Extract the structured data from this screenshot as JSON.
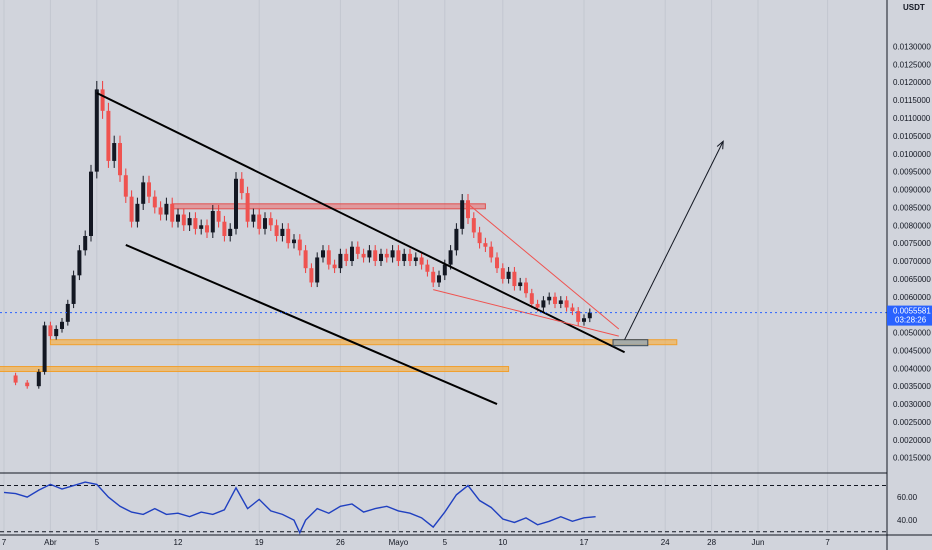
{
  "chart_data": {
    "type": "candlestick",
    "unit_label": "USDT",
    "y_range": [
      0.0011,
      0.0143
    ],
    "y_ticks": [
      0.0015,
      0.002,
      0.0025,
      0.003,
      0.0035,
      0.004,
      0.0045,
      0.005,
      0.0055,
      0.006,
      0.0065,
      0.007,
      0.0075,
      0.008,
      0.0085,
      0.009,
      0.0095,
      0.01,
      0.0105,
      0.011,
      0.0115,
      0.012,
      0.0125,
      0.013
    ],
    "y_tick_labels": [
      "0.0015000",
      "0.0020000",
      "0.0025000",
      "0.0030000",
      "0.0035000",
      "0.0040000",
      "0.0045000",
      "0.0050000",
      "0.0055000",
      "0.0060000",
      "0.0065000",
      "0.0070000",
      "0.0075000",
      "0.0080000",
      "0.0085000",
      "0.0090000",
      "0.0095000",
      "0.0100000",
      "0.0105000",
      "0.0110000",
      "0.0115000",
      "0.0120000",
      "0.0125000",
      "0.0130000"
    ],
    "x_ticks": [
      {
        "label": "7",
        "day": 0
      },
      {
        "label": "Abr",
        "day": 4
      },
      {
        "label": "5",
        "day": 8
      },
      {
        "label": "12",
        "day": 15
      },
      {
        "label": "19",
        "day": 22
      },
      {
        "label": "26",
        "day": 29
      },
      {
        "label": "Mayo",
        "day": 34
      },
      {
        "label": "5",
        "day": 38
      },
      {
        "label": "10",
        "day": 43
      },
      {
        "label": "17",
        "day": 50
      },
      {
        "label": "24",
        "day": 57
      },
      {
        "label": "28",
        "day": 61
      },
      {
        "label": "Jun",
        "day": 65
      },
      {
        "label": "7",
        "day": 71
      }
    ],
    "current_price": {
      "value": 0.0055581,
      "label": "0.0055581",
      "countdown": "03:28:26"
    },
    "series_close": [
      [
        0,
        0.0038
      ],
      [
        1,
        0.0036
      ],
      [
        2,
        0.0035
      ],
      [
        3,
        0.0039
      ],
      [
        3.5,
        0.0052
      ],
      [
        4,
        0.0049
      ],
      [
        4.5,
        0.0051
      ],
      [
        5,
        0.0053
      ],
      [
        5.5,
        0.0058
      ],
      [
        6,
        0.0066
      ],
      [
        6.5,
        0.0073
      ],
      [
        7,
        0.0077
      ],
      [
        7.5,
        0.0095
      ],
      [
        8,
        0.0118
      ],
      [
        8.5,
        0.0112
      ],
      [
        9,
        0.0098
      ],
      [
        9.5,
        0.0103
      ],
      [
        10,
        0.0094
      ],
      [
        10.5,
        0.0088
      ],
      [
        11,
        0.0081
      ],
      [
        11.5,
        0.0086
      ],
      [
        12,
        0.0092
      ],
      [
        12.5,
        0.0088
      ],
      [
        13,
        0.0085
      ],
      [
        13.5,
        0.0083
      ],
      [
        14,
        0.0086
      ],
      [
        14.5,
        0.0081
      ],
      [
        15,
        0.0083
      ],
      [
        15.5,
        0.008
      ],
      [
        16,
        0.0082
      ],
      [
        16.5,
        0.0079
      ],
      [
        17,
        0.008
      ],
      [
        17.5,
        0.0078
      ],
      [
        18,
        0.0084
      ],
      [
        18.5,
        0.0081
      ],
      [
        19,
        0.0077
      ],
      [
        19.5,
        0.0079
      ],
      [
        20,
        0.0093
      ],
      [
        20.5,
        0.0089
      ],
      [
        21,
        0.0081
      ],
      [
        21.5,
        0.0083
      ],
      [
        22,
        0.0079
      ],
      [
        22.5,
        0.0082
      ],
      [
        23,
        0.008
      ],
      [
        23.5,
        0.0077
      ],
      [
        24,
        0.0079
      ],
      [
        24.5,
        0.0075
      ],
      [
        25,
        0.0076
      ],
      [
        25.5,
        0.0073
      ],
      [
        26,
        0.0068
      ],
      [
        26.5,
        0.0064
      ],
      [
        27,
        0.0071
      ],
      [
        27.5,
        0.0073
      ],
      [
        28,
        0.0069
      ],
      [
        28.5,
        0.0068
      ],
      [
        29,
        0.0072
      ],
      [
        29.5,
        0.007
      ],
      [
        30,
        0.0074
      ],
      [
        30.5,
        0.0072
      ],
      [
        31,
        0.0071
      ],
      [
        31.5,
        0.0073
      ],
      [
        32,
        0.007
      ],
      [
        32.5,
        0.0072
      ],
      [
        33,
        0.0071
      ],
      [
        33.5,
        0.0073
      ],
      [
        34,
        0.007
      ],
      [
        34.5,
        0.0072
      ],
      [
        35,
        0.007
      ],
      [
        35.5,
        0.0071
      ],
      [
        36,
        0.0069
      ],
      [
        36.5,
        0.0067
      ],
      [
        37,
        0.0064
      ],
      [
        37.5,
        0.0066
      ],
      [
        38,
        0.0069
      ],
      [
        38.5,
        0.0073
      ],
      [
        39,
        0.0079
      ],
      [
        39.5,
        0.0087
      ],
      [
        40,
        0.0082
      ],
      [
        40.5,
        0.0078
      ],
      [
        41,
        0.0075
      ],
      [
        41.5,
        0.0074
      ],
      [
        42,
        0.0071
      ],
      [
        42.5,
        0.0068
      ],
      [
        43,
        0.0065
      ],
      [
        43.5,
        0.0067
      ],
      [
        44,
        0.0063
      ],
      [
        44.5,
        0.0064
      ],
      [
        45,
        0.0061
      ],
      [
        45.5,
        0.0058
      ],
      [
        46,
        0.0057
      ],
      [
        46.5,
        0.0059
      ],
      [
        47,
        0.006
      ],
      [
        47.5,
        0.0058
      ],
      [
        48,
        0.0059
      ],
      [
        48.5,
        0.0057
      ],
      [
        49,
        0.0056
      ],
      [
        49.5,
        0.0053
      ],
      [
        50,
        0.0054
      ],
      [
        50.5,
        0.00556
      ]
    ],
    "resistance_zones": [
      {
        "y_low": 0.0085,
        "y_high": 0.0086,
        "x_start": 14.5,
        "x_end": 41.5
      },
      {
        "y_low": 0.0047,
        "y_high": 0.0048,
        "x_start": 4,
        "x_end": 58
      }
    ],
    "support_zones": [
      {
        "y_low": 0.00395,
        "y_high": 0.00405,
        "x_start": -0.5,
        "x_end": 43.5
      }
    ],
    "trendlines": [
      {
        "from": [
          8,
          0.0117
        ],
        "to": [
          53.5,
          0.00445
        ],
        "style": "thick"
      },
      {
        "from": [
          10.5,
          0.00745
        ],
        "to": [
          42.5,
          0.003
        ],
        "style": "thick"
      },
      {
        "from": [
          40,
          0.0086
        ],
        "to": [
          53,
          0.0051
        ],
        "style": "thin-red"
      },
      {
        "from": [
          37,
          0.0062
        ],
        "to": [
          53,
          0.0049
        ],
        "style": "thin-red"
      }
    ],
    "projection": {
      "from": [
        53.5,
        0.0048
      ],
      "to": [
        62,
        0.01035
      ]
    },
    "target_box": {
      "y_low": 0.0047,
      "y_high": 0.0048,
      "x_start": 52.5,
      "x_end": 55.5
    },
    "rsi": {
      "y_range": [
        28,
        80
      ],
      "levels": [
        70,
        30
      ],
      "tick_labels": [
        "60.00",
        "40.00"
      ],
      "tick_values": [
        60,
        40
      ],
      "series": [
        [
          0,
          64
        ],
        [
          1,
          63
        ],
        [
          2,
          60
        ],
        [
          3,
          66
        ],
        [
          4,
          71
        ],
        [
          5,
          67
        ],
        [
          6,
          70
        ],
        [
          7,
          73
        ],
        [
          8,
          71
        ],
        [
          9,
          60
        ],
        [
          10,
          52
        ],
        [
          11,
          47
        ],
        [
          12,
          45
        ],
        [
          13,
          50
        ],
        [
          14,
          45
        ],
        [
          15,
          46
        ],
        [
          16,
          43
        ],
        [
          17,
          47
        ],
        [
          18,
          45
        ],
        [
          19,
          49
        ],
        [
          20,
          68
        ],
        [
          21,
          50
        ],
        [
          22,
          58
        ],
        [
          23,
          48
        ],
        [
          24,
          45
        ],
        [
          25,
          40
        ],
        [
          25.5,
          29
        ],
        [
          26,
          40
        ],
        [
          27,
          50
        ],
        [
          28,
          46
        ],
        [
          29,
          52
        ],
        [
          30,
          54
        ],
        [
          31,
          47
        ],
        [
          32,
          50
        ],
        [
          33,
          52
        ],
        [
          34,
          48
        ],
        [
          35,
          46
        ],
        [
          36,
          42
        ],
        [
          37,
          34
        ],
        [
          38,
          47
        ],
        [
          39,
          62
        ],
        [
          40,
          70
        ],
        [
          41,
          57
        ],
        [
          42,
          51
        ],
        [
          43,
          41
        ],
        [
          44,
          38
        ],
        [
          45,
          42
        ],
        [
          46,
          36
        ],
        [
          47,
          39
        ],
        [
          48,
          43
        ],
        [
          49,
          39
        ],
        [
          50,
          42
        ],
        [
          51,
          43
        ]
      ]
    }
  }
}
